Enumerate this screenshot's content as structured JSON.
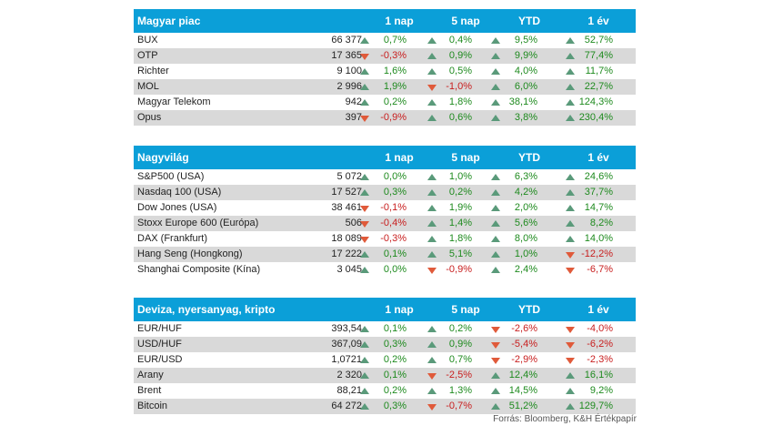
{
  "columns": [
    "1 nap",
    "5 nap",
    "YTD",
    "1 év"
  ],
  "sections": [
    {
      "title": "Magyar piac",
      "rows": [
        {
          "name": "BUX",
          "value": "66 377",
          "c": [
            [
              "up",
              "0,7%"
            ],
            [
              "up",
              "0,4%"
            ],
            [
              "up",
              "9,5%"
            ],
            [
              "up",
              "52,7%"
            ]
          ]
        },
        {
          "name": "OTP",
          "value": "17 365",
          "c": [
            [
              "down",
              "-0,3%"
            ],
            [
              "up",
              "0,9%"
            ],
            [
              "up",
              "9,9%"
            ],
            [
              "up",
              "77,4%"
            ]
          ]
        },
        {
          "name": "Richter",
          "value": "9 100",
          "c": [
            [
              "up",
              "1,6%"
            ],
            [
              "up",
              "0,5%"
            ],
            [
              "up",
              "4,0%"
            ],
            [
              "up",
              "11,7%"
            ]
          ]
        },
        {
          "name": "MOL",
          "value": "2 996",
          "c": [
            [
              "up",
              "1,9%"
            ],
            [
              "down",
              "-1,0%"
            ],
            [
              "up",
              "6,0%"
            ],
            [
              "up",
              "22,7%"
            ]
          ]
        },
        {
          "name": "Magyar Telekom",
          "value": "942",
          "c": [
            [
              "up",
              "0,2%"
            ],
            [
              "up",
              "1,8%"
            ],
            [
              "up",
              "38,1%"
            ],
            [
              "up",
              "124,3%"
            ]
          ]
        },
        {
          "name": "Opus",
          "value": "397",
          "c": [
            [
              "down",
              "-0,9%"
            ],
            [
              "up",
              "0,6%"
            ],
            [
              "up",
              "3,8%"
            ],
            [
              "up",
              "230,4%"
            ]
          ]
        }
      ]
    },
    {
      "title": "Nagyvilág",
      "rows": [
        {
          "name": "S&P500 (USA)",
          "value": "5 072",
          "c": [
            [
              "up",
              "0,0%"
            ],
            [
              "up",
              "1,0%"
            ],
            [
              "up",
              "6,3%"
            ],
            [
              "up",
              "24,6%"
            ]
          ]
        },
        {
          "name": "Nasdaq 100 (USA)",
          "value": "17 527",
          "c": [
            [
              "up",
              "0,3%"
            ],
            [
              "up",
              "0,2%"
            ],
            [
              "up",
              "4,2%"
            ],
            [
              "up",
              "37,7%"
            ]
          ]
        },
        {
          "name": "Dow Jones (USA)",
          "value": "38 461",
          "c": [
            [
              "down",
              "-0,1%"
            ],
            [
              "up",
              "1,9%"
            ],
            [
              "up",
              "2,0%"
            ],
            [
              "up",
              "14,7%"
            ]
          ]
        },
        {
          "name": "Stoxx Europe 600 (Európa)",
          "value": "506",
          "c": [
            [
              "down",
              "-0,4%"
            ],
            [
              "up",
              "1,4%"
            ],
            [
              "up",
              "5,6%"
            ],
            [
              "up",
              "8,2%"
            ]
          ]
        },
        {
          "name": "DAX (Frankfurt)",
          "value": "18 089",
          "c": [
            [
              "down",
              "-0,3%"
            ],
            [
              "up",
              "1,8%"
            ],
            [
              "up",
              "8,0%"
            ],
            [
              "up",
              "14,0%"
            ]
          ]
        },
        {
          "name": "Hang Seng (Hongkong)",
          "value": "17 222",
          "c": [
            [
              "up",
              "0,1%"
            ],
            [
              "up",
              "5,1%"
            ],
            [
              "up",
              "1,0%"
            ],
            [
              "down",
              "-12,2%"
            ]
          ]
        },
        {
          "name": "Shanghai Composite (Kína)",
          "value": "3 045",
          "c": [
            [
              "up",
              "0,0%"
            ],
            [
              "down",
              "-0,9%"
            ],
            [
              "up",
              "2,4%"
            ],
            [
              "down",
              "-6,7%"
            ]
          ]
        }
      ]
    },
    {
      "title": "Deviza, nyersanyag, kripto",
      "rows": [
        {
          "name": "EUR/HUF",
          "value": "393,54",
          "c": [
            [
              "up",
              "0,1%"
            ],
            [
              "up",
              "0,2%"
            ],
            [
              "down",
              "-2,6%"
            ],
            [
              "down",
              "-4,0%"
            ]
          ]
        },
        {
          "name": "USD/HUF",
          "value": "367,09",
          "c": [
            [
              "up",
              "0,3%"
            ],
            [
              "up",
              "0,9%"
            ],
            [
              "down",
              "-5,4%"
            ],
            [
              "down",
              "-6,2%"
            ]
          ]
        },
        {
          "name": "EUR/USD",
          "value": "1,0721",
          "c": [
            [
              "up",
              "0,2%"
            ],
            [
              "up",
              "0,7%"
            ],
            [
              "down",
              "-2,9%"
            ],
            [
              "down",
              "-2,3%"
            ]
          ]
        },
        {
          "name": "Arany",
          "value": "2 320",
          "c": [
            [
              "up",
              "0,1%"
            ],
            [
              "down",
              "-2,5%"
            ],
            [
              "up",
              "12,4%"
            ],
            [
              "up",
              "16,1%"
            ]
          ]
        },
        {
          "name": "Brent",
          "value": "88,21",
          "c": [
            [
              "up",
              "0,2%"
            ],
            [
              "up",
              "1,3%"
            ],
            [
              "up",
              "14,5%"
            ],
            [
              "up",
              "9,2%"
            ]
          ]
        },
        {
          "name": "Bitcoin",
          "value": "64 272",
          "c": [
            [
              "up",
              "0,3%"
            ],
            [
              "down",
              "-0,7%"
            ],
            [
              "up",
              "51,2%"
            ],
            [
              "up",
              "129,7%"
            ]
          ]
        }
      ]
    }
  ],
  "source": "Forrás: Bloomberg, K&H Értékpapír",
  "colors": {
    "header": "#0b9fd8",
    "alt_row": "#d9d9d9",
    "up": "#1e8a1e",
    "down": "#c81e1e"
  }
}
